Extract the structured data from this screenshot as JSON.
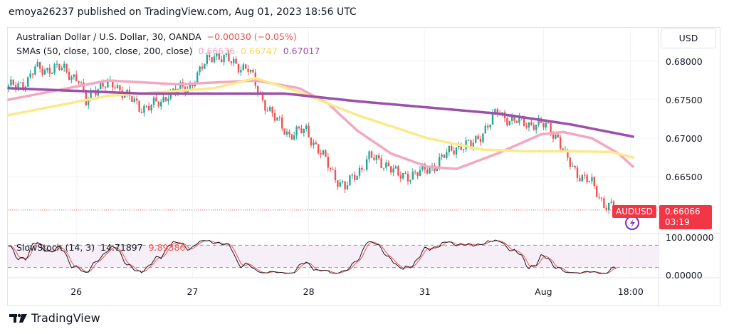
{
  "header": {
    "published": "emoya26237 published on TradingView.com, Aug 01, 2023 18:56 UTC"
  },
  "legend": {
    "symbol": "Australian Dollar / U.S. Dollar, 30, OANDA",
    "change": "−0.00030 (−0.05%)",
    "sma_label": "SMAs (50, close, 100, close, 200, close)",
    "sma50_value": "0.66636",
    "sma100_value": "0.66747",
    "sma200_value": "0.67017",
    "stoch_label": "SlowStoch (14, 3)",
    "stoch_k_value": "14.71897",
    "stoch_d_value": "9.89386"
  },
  "price_axis": {
    "currency": "USD",
    "labels": [
      "0.68000",
      "0.67500",
      "0.67000",
      "0.66500"
    ],
    "stoch_labels": [
      "100.00000",
      "0.00000"
    ]
  },
  "last_price": {
    "symbol": "AUDUSD",
    "price": "0.66066",
    "countdown": "03:19"
  },
  "colors": {
    "up": "#26a69a",
    "down": "#ef5350",
    "sma50": "#f4a7c0",
    "sma100": "#fbe98a",
    "sma200": "#9c4fab",
    "stoch_k": "#131722",
    "stoch_d": "#ef5350"
  },
  "footer": {
    "brand": "TradingView",
    "logo_icon": "tradingview-logo"
  },
  "chart_data": {
    "type": "candlestick",
    "x_unit": "bar index (30-minute bars)",
    "ticks": [
      {
        "i": 28,
        "label": "26"
      },
      {
        "i": 76,
        "label": "27"
      },
      {
        "i": 124,
        "label": "28"
      },
      {
        "i": 172,
        "label": "31"
      },
      {
        "i": 221,
        "label": "Aug"
      },
      {
        "i": 257,
        "label": "18:00"
      }
    ],
    "ylim": [
      0.659,
      0.684
    ],
    "close_path": [
      [
        0,
        0.6765
      ],
      [
        8,
        0.6775
      ],
      [
        11,
        0.679
      ],
      [
        23,
        0.679
      ],
      [
        29,
        0.6775
      ],
      [
        32,
        0.6745
      ],
      [
        35,
        0.6765
      ],
      [
        44,
        0.677
      ],
      [
        54,
        0.674
      ],
      [
        63,
        0.6745
      ],
      [
        66,
        0.676
      ],
      [
        74,
        0.6765
      ],
      [
        82,
        0.68
      ],
      [
        85,
        0.681
      ],
      [
        91,
        0.68
      ],
      [
        99,
        0.679
      ],
      [
        104,
        0.6755
      ],
      [
        110,
        0.6725
      ],
      [
        116,
        0.6705
      ],
      [
        123,
        0.671
      ],
      [
        129,
        0.668
      ],
      [
        135,
        0.665
      ],
      [
        139,
        0.6635
      ],
      [
        144,
        0.6655
      ],
      [
        149,
        0.6675
      ],
      [
        157,
        0.6665
      ],
      [
        161,
        0.665
      ],
      [
        170,
        0.6655
      ],
      [
        176,
        0.6665
      ],
      [
        185,
        0.669
      ],
      [
        191,
        0.669
      ],
      [
        199,
        0.672
      ],
      [
        202,
        0.6735
      ],
      [
        208,
        0.6722
      ],
      [
        214,
        0.672
      ],
      [
        223,
        0.6715
      ],
      [
        227,
        0.67
      ],
      [
        230,
        0.6675
      ],
      [
        235,
        0.6655
      ],
      [
        241,
        0.664
      ],
      [
        246,
        0.6615
      ],
      [
        251,
        0.6607
      ]
    ],
    "series": [
      {
        "name": "SMA 50",
        "points": [
          [
            0,
            0.675
          ],
          [
            41,
            0.6775
          ],
          [
            70,
            0.677
          ],
          [
            102,
            0.6775
          ],
          [
            120,
            0.6765
          ],
          [
            132,
            0.6745
          ],
          [
            144,
            0.671
          ],
          [
            158,
            0.668
          ],
          [
            173,
            0.6663
          ],
          [
            185,
            0.666
          ],
          [
            202,
            0.668
          ],
          [
            220,
            0.6705
          ],
          [
            229,
            0.6708
          ],
          [
            241,
            0.67
          ],
          [
            252,
            0.668
          ],
          [
            258,
            0.6663
          ]
        ]
      },
      {
        "name": "SMA 100",
        "points": [
          [
            0,
            0.673
          ],
          [
            41,
            0.6755
          ],
          [
            85,
            0.6765
          ],
          [
            102,
            0.6778
          ],
          [
            120,
            0.676
          ],
          [
            144,
            0.673
          ],
          [
            173,
            0.67
          ],
          [
            196,
            0.6685
          ],
          [
            214,
            0.6683
          ],
          [
            232,
            0.6683
          ],
          [
            249,
            0.6682
          ],
          [
            258,
            0.6675
          ]
        ]
      },
      {
        "name": "SMA 200",
        "points": [
          [
            0,
            0.6765
          ],
          [
            55,
            0.6758
          ],
          [
            114,
            0.6758
          ],
          [
            144,
            0.6748
          ],
          [
            173,
            0.674
          ],
          [
            202,
            0.6732
          ],
          [
            232,
            0.6718
          ],
          [
            258,
            0.6702
          ]
        ]
      }
    ],
    "stoch_bands": [
      20,
      80
    ],
    "stoch_range": [
      0,
      100
    ]
  }
}
